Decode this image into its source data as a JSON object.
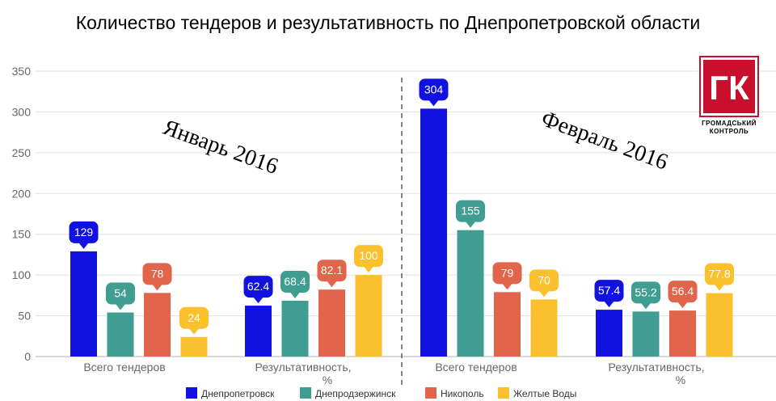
{
  "chart_data": {
    "type": "bar",
    "title": "Количество тендеров и результативность по Днепропетровской области",
    "ylim": [
      0,
      350
    ],
    "yticks": [
      0,
      50,
      100,
      150,
      200,
      250,
      300,
      350
    ],
    "grid": true,
    "legend_position": "bottom",
    "series": [
      {
        "name": "Днепропетровск",
        "color": "#1212e0"
      },
      {
        "name": "Днепродзержинск",
        "color": "#3f9e91"
      },
      {
        "name": "Никополь",
        "color": "#e0654a"
      },
      {
        "name": "Желтые Воды",
        "color": "#fbc02d"
      }
    ],
    "panels": [
      {
        "period": "Январь 2016",
        "groups": [
          {
            "label": [
              "Всего тендеров"
            ],
            "values": [
              129,
              54,
              78,
              24
            ],
            "labels": [
              "129",
              "54",
              "78",
              "24"
            ]
          },
          {
            "label": [
              "Результативность,",
              "%"
            ],
            "values": [
              62.4,
              68.4,
              82.1,
              100
            ],
            "labels": [
              "62.4",
              "68.4",
              "82.1",
              "100"
            ]
          }
        ]
      },
      {
        "period": "Февраль 2016",
        "groups": [
          {
            "label": [
              "Всего тендеров"
            ],
            "values": [
              304,
              155,
              79,
              70
            ],
            "labels": [
              "304",
              "155",
              "79",
              "70"
            ]
          },
          {
            "label": [
              "Результативность,",
              "%"
            ],
            "values": [
              57.4,
              55.2,
              56.4,
              77.8
            ],
            "labels": [
              "57.4",
              "55.2",
              "56.4",
              "77.8"
            ]
          }
        ]
      }
    ]
  },
  "logo": {
    "mark": "ГК",
    "line1": "ГРОМАДСЬКИЙ",
    "line2": "КОНТРОЛЬ",
    "color": "#c8102e"
  }
}
